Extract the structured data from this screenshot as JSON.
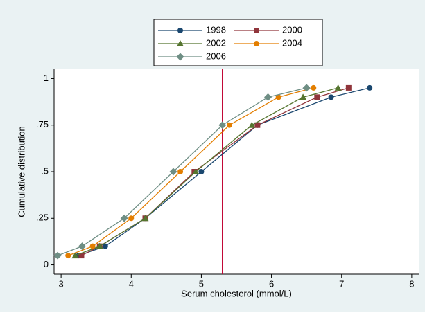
{
  "chart_data": {
    "type": "line",
    "x_label": "Serum cholesterol (mmol/L)",
    "y_label": "Cumulative distribution",
    "xlim": [
      2.9,
      8.1
    ],
    "ylim": [
      -0.05,
      1.05
    ],
    "xticks": [
      3,
      4,
      5,
      6,
      7,
      8
    ],
    "yticks": [
      0,
      {
        "value": 0.25,
        "label": ".25"
      },
      {
        "value": 0.5,
        "label": ".5"
      },
      {
        "value": 0.75,
        "label": ".75"
      },
      1
    ],
    "reference_line": {
      "x": 5.3,
      "color": "#c10534"
    },
    "series": [
      {
        "name": "1998",
        "color": "#1a476f",
        "marker": "circle",
        "x": [
          3.25,
          3.63,
          4.2,
          5.0,
          5.8,
          6.85,
          7.4
        ],
        "values": [
          0.05,
          0.1,
          0.25,
          0.5,
          0.75,
          0.9,
          0.95
        ]
      },
      {
        "name": "2000",
        "color": "#90353b",
        "marker": "square",
        "x": [
          3.29,
          3.55,
          4.2,
          4.9,
          5.8,
          6.65,
          7.1
        ],
        "values": [
          0.05,
          0.1,
          0.25,
          0.5,
          0.75,
          0.9,
          0.95
        ]
      },
      {
        "name": "2002",
        "color": "#55752f",
        "marker": "triangle",
        "x": [
          3.2,
          3.55,
          4.2,
          4.92,
          5.72,
          6.45,
          6.95
        ],
        "values": [
          0.05,
          0.1,
          0.25,
          0.5,
          0.75,
          0.9,
          0.95
        ]
      },
      {
        "name": "2004",
        "color": "#e37e00",
        "marker": "circle",
        "x": [
          3.1,
          3.45,
          4.0,
          4.7,
          5.4,
          6.1,
          6.6
        ],
        "values": [
          0.05,
          0.1,
          0.25,
          0.5,
          0.75,
          0.9,
          0.95
        ]
      },
      {
        "name": "2006",
        "color": "#6e8e84",
        "marker": "diamond",
        "x": [
          2.95,
          3.3,
          3.9,
          4.6,
          5.3,
          5.95,
          6.5
        ],
        "values": [
          0.05,
          0.1,
          0.25,
          0.5,
          0.75,
          0.9,
          0.95
        ]
      }
    ]
  }
}
